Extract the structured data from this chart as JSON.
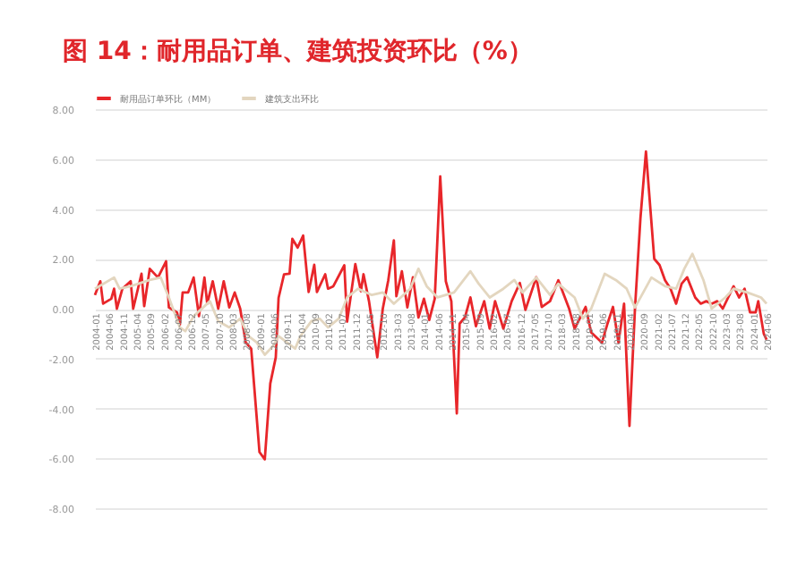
{
  "chart_data": {
    "type": "line",
    "title": "图 14：耐用品订单、建筑投资环比（%）",
    "xlim": [
      "2004-01",
      "2024-06"
    ],
    "xticks": [
      "2004-01",
      "2004-06",
      "2004-11",
      "2005-04",
      "2005-09",
      "2006-02",
      "2006-07",
      "2006-12",
      "2007-05",
      "2007-10",
      "2008-03",
      "2008-08",
      "2009-01",
      "2009-06",
      "2009-11",
      "2010-04",
      "2010-09",
      "2011-02",
      "2011-07",
      "2011-12",
      "2012-05",
      "2012-10",
      "2013-03",
      "2013-08",
      "2014-01",
      "2014-06",
      "2014-11",
      "2015-04",
      "2015-09",
      "2016-02",
      "2016-07",
      "2016-12",
      "2017-05",
      "2017-10",
      "2018-03",
      "2018-08",
      "2019-01",
      "2019-06",
      "2019-11",
      "2020-04",
      "2020-09",
      "2021-02",
      "2021-07",
      "2021-12",
      "2022-05",
      "2022-10",
      "2023-03",
      "2023-08",
      "2024-01",
      "2024-06"
    ],
    "ylim": [
      -8,
      8
    ],
    "yticks": [
      {
        "value": -8,
        "label": "-8.00"
      },
      {
        "value": -6,
        "label": "-6.00"
      },
      {
        "value": -4,
        "label": "-4.00"
      },
      {
        "value": -2,
        "label": "-2.00"
      },
      {
        "value": 0,
        "label": "0.00"
      },
      {
        "value": 2,
        "label": "2.00"
      },
      {
        "value": 4,
        "label": "4.00"
      },
      {
        "value": 6,
        "label": "6.00"
      },
      {
        "value": 8,
        "label": "8.00"
      }
    ],
    "grid": "y",
    "legend": "top",
    "series": [
      {
        "name": "耐用品订单环比（MM）",
        "color": "#e8262a",
        "x": [
          "2004-01",
          "2004-03",
          "2004-04",
          "2004-07",
          "2004-08",
          "2004-09",
          "2004-11",
          "2005-02",
          "2005-03",
          "2005-06",
          "2005-07",
          "2005-09",
          "2005-12",
          "2006-03",
          "2006-04",
          "2006-07",
          "2006-08",
          "2006-09",
          "2006-11",
          "2007-01",
          "2007-03",
          "2007-05",
          "2007-06",
          "2007-08",
          "2007-10",
          "2007-12",
          "2008-02",
          "2008-04",
          "2008-06",
          "2008-08",
          "2008-10",
          "2009-01",
          "2009-03",
          "2009-05",
          "2009-07",
          "2009-08",
          "2009-10",
          "2009-12",
          "2010-01",
          "2010-03",
          "2010-05",
          "2010-07",
          "2010-09",
          "2010-10",
          "2011-01",
          "2011-02",
          "2011-04",
          "2011-08",
          "2011-09",
          "2011-12",
          "2012-02",
          "2012-03",
          "2012-05",
          "2012-08",
          "2012-10",
          "2012-12",
          "2013-02",
          "2013-03",
          "2013-05",
          "2013-07",
          "2013-09",
          "2013-11",
          "2014-01",
          "2014-03",
          "2014-05",
          "2014-07",
          "2014-09",
          "2014-11",
          "2015-01",
          "2015-02",
          "2015-04",
          "2015-06",
          "2015-08",
          "2015-11",
          "2016-01",
          "2016-03",
          "2016-06",
          "2016-09",
          "2016-12",
          "2017-02",
          "2017-06",
          "2017-08",
          "2017-11",
          "2018-02",
          "2018-06",
          "2018-08",
          "2018-12",
          "2019-02",
          "2019-06",
          "2019-08",
          "2019-10",
          "2019-12",
          "2020-02",
          "2020-04",
          "2020-06",
          "2020-08",
          "2020-10",
          "2021-01",
          "2021-03",
          "2021-05",
          "2021-07",
          "2021-09",
          "2021-11",
          "2022-01",
          "2022-04",
          "2022-06",
          "2022-08",
          "2022-10",
          "2022-12",
          "2023-02",
          "2023-06",
          "2023-08",
          "2023-10",
          "2023-12",
          "2024-02",
          "2024-03",
          "2024-05",
          "2024-06"
        ],
        "values": [
          0.55,
          1.1,
          0.2,
          0.4,
          0.8,
          0,
          0.8,
          1.1,
          0,
          1.4,
          0.1,
          1.6,
          1.25,
          1.9,
          0.05,
          -0.15,
          -0.65,
          0.65,
          0.65,
          1.25,
          -0.3,
          1.25,
          0.2,
          1.1,
          0,
          1.1,
          0.05,
          0.65,
          0,
          -1.35,
          -1.6,
          -5.75,
          -6.04,
          -3.0,
          -1.95,
          0.43,
          1.38,
          1.4,
          2.8,
          2.45,
          2.93,
          0.67,
          1.76,
          0.67,
          1.38,
          0.8,
          0.9,
          1.74,
          -0.52,
          1.79,
          0.7,
          1.38,
          0.3,
          -1.95,
          0,
          1.14,
          2.74,
          0.5,
          1.5,
          0.05,
          1.26,
          -0.35,
          0.4,
          -0.45,
          0.4,
          5.3,
          1.1,
          0.3,
          -4.2,
          -0.6,
          -0.35,
          0.45,
          -0.7,
          0.3,
          -0.8,
          0.3,
          -0.8,
          0.3,
          1.03,
          -0.05,
          1.26,
          0.07,
          0.3,
          1.14,
          0,
          -0.8,
          0.07,
          -0.95,
          -1.36,
          -0.6,
          0.07,
          -1.36,
          0.2,
          -4.7,
          0,
          3.64,
          6.3,
          2.0,
          1.75,
          1.14,
          0.8,
          0.2,
          1.0,
          1.26,
          0.45,
          0.2,
          0.3,
          0.2,
          0.3,
          0,
          0.9,
          0.45,
          0.8,
          -0.15,
          -0.15,
          0.3,
          -1.0,
          -1.24
        ]
      },
      {
        "name": "建筑支出环比",
        "color": "#e3d6bf",
        "x": [
          "2004-01",
          "2004-08",
          "2004-10",
          "2005-02",
          "2005-09",
          "2006-01",
          "2006-04",
          "2006-08",
          "2006-10",
          "2007-01",
          "2007-07",
          "2007-10",
          "2008-02",
          "2008-06",
          "2008-09",
          "2008-12",
          "2009-03",
          "2009-06",
          "2009-08",
          "2009-11",
          "2010-02",
          "2010-04",
          "2010-08",
          "2010-11",
          "2011-02",
          "2011-06",
          "2011-09",
          "2012-01",
          "2012-06",
          "2012-10",
          "2013-02",
          "2013-08",
          "2013-11",
          "2014-02",
          "2014-06",
          "2014-12",
          "2015-06",
          "2015-09",
          "2016-01",
          "2016-06",
          "2016-10",
          "2017-01",
          "2017-06",
          "2017-11",
          "2018-02",
          "2018-08",
          "2018-11",
          "2019-02",
          "2019-07",
          "2019-11",
          "2020-03",
          "2020-06",
          "2020-09",
          "2020-12",
          "2021-05",
          "2021-09",
          "2021-12",
          "2022-03",
          "2022-07",
          "2022-10",
          "2023-03",
          "2023-06",
          "2023-11",
          "2024-04",
          "2024-06"
        ],
        "values": [
          0.8,
          1.25,
          0.8,
          0.9,
          1.15,
          1.25,
          0.45,
          -0.75,
          -0.9,
          -0.3,
          0.3,
          -0.5,
          -0.75,
          -0.4,
          -1.1,
          -1.35,
          -1.85,
          -1.5,
          -1.1,
          -1.35,
          -1.6,
          -1.1,
          -0.5,
          -0.4,
          -0.75,
          -0.4,
          0.45,
          0.8,
          0.55,
          0.65,
          0.2,
          0.8,
          1.6,
          0.9,
          0.45,
          0.65,
          1.5,
          1.0,
          0.45,
          0.8,
          1.15,
          0.65,
          1.25,
          0.55,
          1.0,
          0.45,
          -0.4,
          0,
          1.4,
          1.15,
          0.8,
          0.05,
          0.65,
          1.25,
          0.9,
          0.8,
          1.6,
          2.2,
          1.15,
          0,
          0.45,
          0.8,
          0.65,
          0.45,
          0.2
        ]
      }
    ]
  }
}
